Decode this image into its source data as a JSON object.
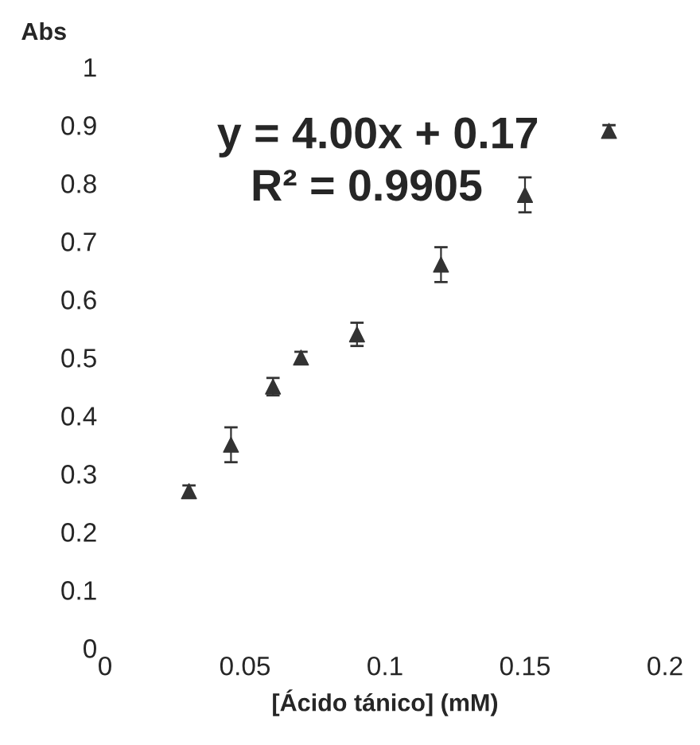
{
  "chart_data": {
    "type": "scatter",
    "xlabel": "[Ácido tánico] (mM)",
    "ylabel": "Abs",
    "annotations": [
      "y = 4.00x + 0.17",
      "R² = 0.9905"
    ],
    "series": [
      {
        "color": "#333333",
        "x": [
          0.03,
          0.045,
          0.06,
          0.07,
          0.09,
          0.12,
          0.15,
          0.18
        ],
        "values": [
          0.27,
          0.35,
          0.45,
          0.5,
          0.54,
          0.66,
          0.78,
          0.89
        ],
        "errors": [
          0.01,
          0.03,
          0.015,
          0.01,
          0.02,
          0.03,
          0.03,
          0.01
        ]
      }
    ],
    "marker": "triangle",
    "xlim": [
      0,
      0.2
    ],
    "ylim": [
      0,
      1
    ],
    "xticks": [
      0,
      0.05,
      0.1,
      0.15,
      0.2
    ],
    "yticks": [
      0,
      0.1,
      0.2,
      0.3,
      0.4,
      0.5,
      0.6,
      0.7,
      0.8,
      0.9,
      1
    ],
    "grid": false,
    "legend": false
  }
}
